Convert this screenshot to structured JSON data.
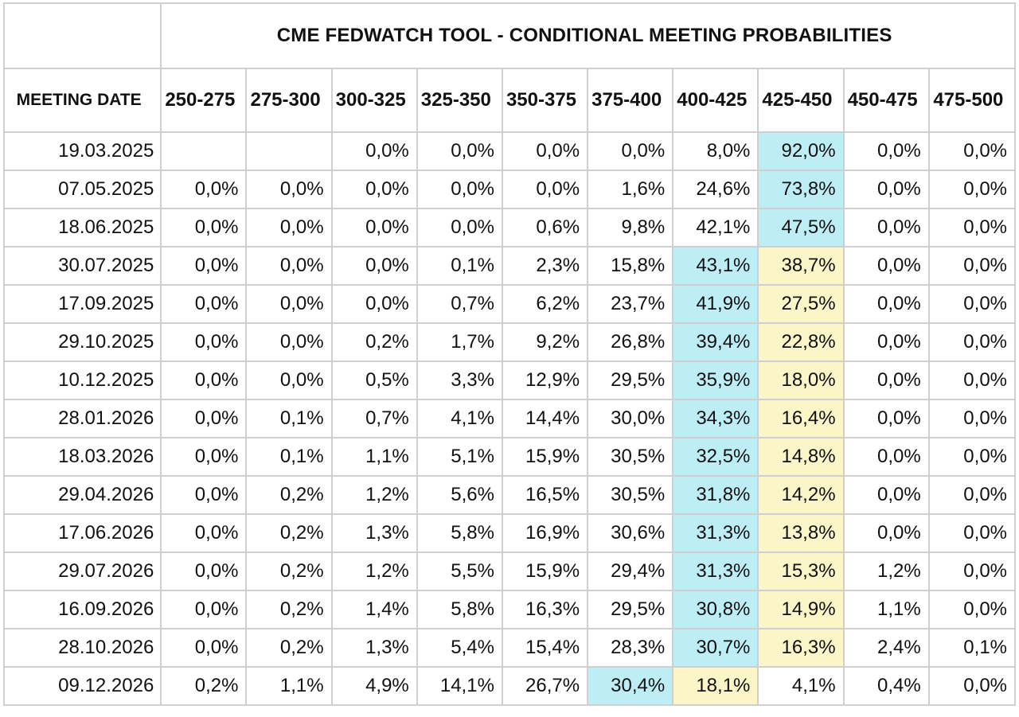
{
  "title": "CME FEDWATCH TOOL - CONDITIONAL MEETING PROBABILITIES",
  "date_header": "MEETING DATE",
  "columns": [
    "250-275",
    "275-300",
    "300-325",
    "325-350",
    "350-375",
    "375-400",
    "400-425",
    "425-450",
    "450-475",
    "475-500"
  ],
  "colors": {
    "highlight_blue": "#bdeef5",
    "highlight_yellow": "#fbf6c8",
    "grid": "#cfcfcf"
  },
  "rows": [
    {
      "date": "19.03.2025",
      "values": [
        "",
        "",
        "0,0%",
        "0,0%",
        "0,0%",
        "0,0%",
        "8,0%",
        "92,0%",
        "0,0%",
        "0,0%"
      ],
      "blue": 7,
      "yellow": -1
    },
    {
      "date": "07.05.2025",
      "values": [
        "0,0%",
        "0,0%",
        "0,0%",
        "0,0%",
        "0,0%",
        "1,6%",
        "24,6%",
        "73,8%",
        "0,0%",
        "0,0%"
      ],
      "blue": 7,
      "yellow": -1
    },
    {
      "date": "18.06.2025",
      "values": [
        "0,0%",
        "0,0%",
        "0,0%",
        "0,0%",
        "0,6%",
        "9,8%",
        "42,1%",
        "47,5%",
        "0,0%",
        "0,0%"
      ],
      "blue": 7,
      "yellow": -1
    },
    {
      "date": "30.07.2025",
      "values": [
        "0,0%",
        "0,0%",
        "0,0%",
        "0,1%",
        "2,3%",
        "15,8%",
        "43,1%",
        "38,7%",
        "0,0%",
        "0,0%"
      ],
      "blue": 6,
      "yellow": 7
    },
    {
      "date": "17.09.2025",
      "values": [
        "0,0%",
        "0,0%",
        "0,0%",
        "0,7%",
        "6,2%",
        "23,7%",
        "41,9%",
        "27,5%",
        "0,0%",
        "0,0%"
      ],
      "blue": 6,
      "yellow": 7
    },
    {
      "date": "29.10.2025",
      "values": [
        "0,0%",
        "0,0%",
        "0,2%",
        "1,7%",
        "9,2%",
        "26,8%",
        "39,4%",
        "22,8%",
        "0,0%",
        "0,0%"
      ],
      "blue": 6,
      "yellow": 7
    },
    {
      "date": "10.12.2025",
      "values": [
        "0,0%",
        "0,0%",
        "0,5%",
        "3,3%",
        "12,9%",
        "29,5%",
        "35,9%",
        "18,0%",
        "0,0%",
        "0,0%"
      ],
      "blue": 6,
      "yellow": 7
    },
    {
      "date": "28.01.2026",
      "values": [
        "0,0%",
        "0,1%",
        "0,7%",
        "4,1%",
        "14,4%",
        "30,0%",
        "34,3%",
        "16,4%",
        "0,0%",
        "0,0%"
      ],
      "blue": 6,
      "yellow": 7
    },
    {
      "date": "18.03.2026",
      "values": [
        "0,0%",
        "0,1%",
        "1,1%",
        "5,1%",
        "15,9%",
        "30,5%",
        "32,5%",
        "14,8%",
        "0,0%",
        "0,0%"
      ],
      "blue": 6,
      "yellow": 7
    },
    {
      "date": "29.04.2026",
      "values": [
        "0,0%",
        "0,2%",
        "1,2%",
        "5,6%",
        "16,5%",
        "30,5%",
        "31,8%",
        "14,2%",
        "0,0%",
        "0,0%"
      ],
      "blue": 6,
      "yellow": 7
    },
    {
      "date": "17.06.2026",
      "values": [
        "0,0%",
        "0,2%",
        "1,3%",
        "5,8%",
        "16,9%",
        "30,6%",
        "31,3%",
        "13,8%",
        "0,0%",
        "0,0%"
      ],
      "blue": 6,
      "yellow": 7
    },
    {
      "date": "29.07.2026",
      "values": [
        "0,0%",
        "0,2%",
        "1,2%",
        "5,5%",
        "15,9%",
        "29,4%",
        "31,3%",
        "15,3%",
        "1,2%",
        "0,0%"
      ],
      "blue": 6,
      "yellow": 7
    },
    {
      "date": "16.09.2026",
      "values": [
        "0,0%",
        "0,2%",
        "1,4%",
        "5,8%",
        "16,3%",
        "29,5%",
        "30,8%",
        "14,9%",
        "1,1%",
        "0,0%"
      ],
      "blue": 6,
      "yellow": 7
    },
    {
      "date": "28.10.2026",
      "values": [
        "0,0%",
        "0,2%",
        "1,3%",
        "5,4%",
        "15,4%",
        "28,3%",
        "30,7%",
        "16,3%",
        "2,4%",
        "0,1%"
      ],
      "blue": 6,
      "yellow": 7
    },
    {
      "date": "09.12.2026",
      "values": [
        "0,2%",
        "1,1%",
        "4,9%",
        "14,1%",
        "26,7%",
        "30,4%",
        "18,1%",
        "4,1%",
        "0,4%",
        "0,0%"
      ],
      "blue": 5,
      "yellow": 6
    }
  ]
}
